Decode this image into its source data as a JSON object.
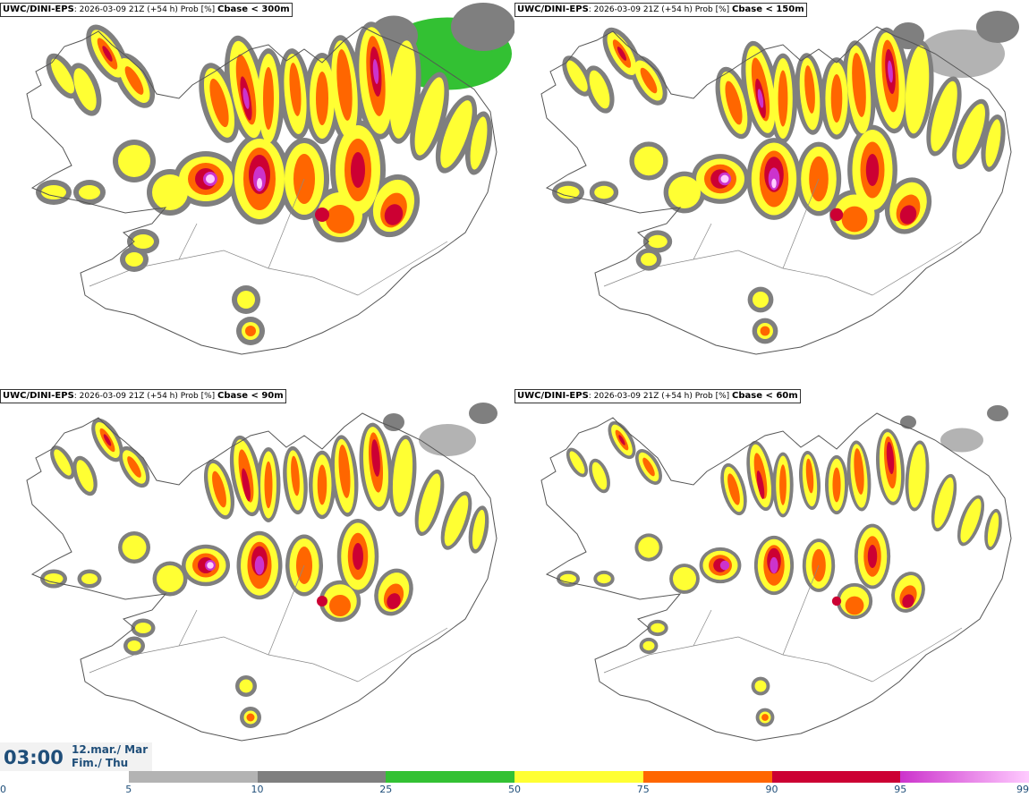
{
  "panels": [
    {
      "model": "UWC/DINI-EPS",
      "info": ": 2026-03-09 21Z (+54 h) Prob [%] ",
      "param": "Cbase < 300m"
    },
    {
      "model": "UWC/DINI-EPS",
      "info": ": 2026-03-09 21Z (+54 h) Prob [%] ",
      "param": "Cbase < 150m"
    },
    {
      "model": "UWC/DINI-EPS",
      "info": ": 2026-03-09 21Z (+54 h) Prob [%] ",
      "param": "Cbase < 90m"
    },
    {
      "model": "UWC/DINI-EPS",
      "info": ": 2026-03-09 21Z (+54 h) Prob [%] ",
      "param": "Cbase < 60m"
    }
  ],
  "time": {
    "clock": "03:00",
    "date_line1": "12.mar./ Mar",
    "date_line2": "Fim./ Thu"
  },
  "colorbar": {
    "labels": [
      "0",
      "5",
      "10",
      "25",
      "50",
      "75",
      "90",
      "95",
      "99"
    ],
    "colors": [
      "#ffffff",
      "#b3b3b3",
      "#7f7f7f",
      "#33c133",
      "#ffff33",
      "#ff6600",
      "#cc0033",
      "#cc33cc"
    ],
    "last_gradient_to": "#ffccff"
  },
  "map_colors": {
    "outline": "#555555",
    "level_5": "#b3b3b3",
    "level_10": "#7f7f7f",
    "level_25": "#33c133",
    "level_50": "#ffff33",
    "level_75": "#ff6600",
    "level_90": "#cc0033",
    "level_95": "#cc33cc",
    "level_99": "#ffccff"
  }
}
